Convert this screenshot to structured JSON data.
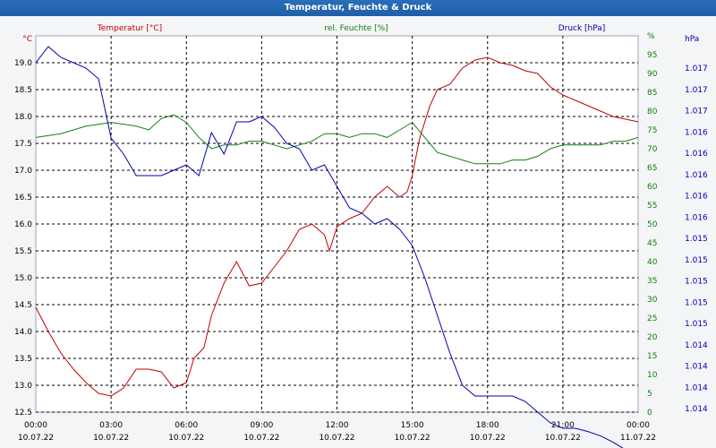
{
  "window": {
    "title": "Temperatur, Feuchte & Druck"
  },
  "chart_data": {
    "type": "line",
    "title": "Temperatur, Feuchte & Druck",
    "grid": true,
    "x_ticks": [
      {
        "time": "00:00",
        "date": "10.07.22"
      },
      {
        "time": "03:00",
        "date": "10.07.22"
      },
      {
        "time": "06:00",
        "date": "10.07.22"
      },
      {
        "time": "09:00",
        "date": "10.07.22"
      },
      {
        "time": "12:00",
        "date": "10.07.22"
      },
      {
        "time": "15:00",
        "date": "10.07.22"
      },
      {
        "time": "18:00",
        "date": "10.07.22"
      },
      {
        "time": "21:00",
        "date": "10.07.22"
      },
      {
        "time": "00:00",
        "date": "11.07.22"
      }
    ],
    "x_hours": [
      0,
      24
    ],
    "axes": {
      "temperature": {
        "label": "Temperatur [°C]",
        "unit": "°C",
        "range": [
          12.5,
          19.5
        ],
        "ticks": [
          "12.5",
          "13.0",
          "13.5",
          "14.0",
          "14.5",
          "15.0",
          "15.5",
          "16.0",
          "16.5",
          "17.0",
          "17.5",
          "18.0",
          "18.5",
          "19.0"
        ],
        "color": "#c00000"
      },
      "humidity": {
        "label": "rel. Feuchte [%]",
        "unit": "%",
        "range": [
          0,
          100
        ],
        "ticks": [
          "0",
          "5",
          "10",
          "15",
          "20",
          "25",
          "30",
          "35",
          "40",
          "45",
          "50",
          "55",
          "60",
          "65",
          "70",
          "75",
          "80",
          "85",
          "90",
          "95",
          "%"
        ],
        "color": "#108010"
      },
      "pressure": {
        "label": "Druck [hPa]",
        "unit": "hPa",
        "range": [
          1013.8,
          1017.3
        ],
        "ticks": [
          "1.014",
          "1.014",
          "1.014",
          "1.014",
          "1.015",
          "1.015",
          "1.015",
          "1.015",
          "1.015",
          "1.016",
          "1.016",
          "1.016",
          "1.016",
          "1.016",
          "1.017",
          "1.017",
          "1.017"
        ],
        "color": "#0000b0"
      }
    },
    "series": [
      {
        "name": "Temperatur [°C]",
        "axis": "temperature",
        "color": "#c00000",
        "x": [
          0,
          0.5,
          1,
          1.5,
          2,
          2.5,
          3,
          3.5,
          4,
          4.5,
          5,
          5.5,
          6,
          6.3,
          6.7,
          7,
          7.5,
          8,
          8.5,
          9,
          9.5,
          10,
          10.5,
          11,
          11.5,
          11.7,
          12,
          12.5,
          13,
          13.5,
          14,
          14.5,
          14.8,
          15,
          15.3,
          15.7,
          16,
          16.5,
          17,
          17.5,
          18,
          18.5,
          19,
          19.5,
          20,
          20.5,
          21,
          21.5,
          22,
          22.5,
          23,
          23.5,
          24
        ],
        "y": [
          14.45,
          14.0,
          13.6,
          13.3,
          13.05,
          12.85,
          12.8,
          12.95,
          13.3,
          13.3,
          13.25,
          12.95,
          13.05,
          13.5,
          13.7,
          14.3,
          14.9,
          15.3,
          14.85,
          14.9,
          15.2,
          15.5,
          15.9,
          16.0,
          15.8,
          15.5,
          15.95,
          16.1,
          16.2,
          16.5,
          16.7,
          16.5,
          16.6,
          16.9,
          17.6,
          18.2,
          18.5,
          18.6,
          18.9,
          19.05,
          19.1,
          19.0,
          18.95,
          18.85,
          18.8,
          18.55,
          18.4,
          18.3,
          18.2,
          18.1,
          18.0,
          17.95,
          17.9
        ]
      },
      {
        "name": "rel. Feuchte [%]",
        "axis": "humidity",
        "color": "#108010",
        "x": [
          0,
          1,
          2,
          3,
          4,
          4.5,
          5,
          5.5,
          6,
          6.5,
          7,
          7.5,
          8,
          8.5,
          9,
          9.5,
          10,
          10.5,
          11,
          11.5,
          12,
          12.5,
          13,
          13.5,
          14,
          14.5,
          15,
          15.5,
          16,
          16.5,
          17,
          17.5,
          18,
          18.5,
          19,
          19.5,
          20,
          20.5,
          21,
          21.5,
          22,
          22.5,
          23,
          23.5,
          24
        ],
        "y": [
          73,
          74,
          76,
          77,
          76,
          75,
          78,
          79,
          77,
          73,
          70,
          71,
          71,
          72,
          72,
          71,
          70,
          71,
          72,
          74,
          74,
          73,
          74,
          74,
          73,
          75,
          77,
          73,
          69,
          68,
          67,
          66,
          66,
          66,
          67,
          67,
          68,
          70,
          71,
          71,
          71,
          71,
          72,
          72,
          73
        ]
      },
      {
        "name": "Druck [hPa]",
        "axis": "pressure",
        "color": "#0000b0",
        "x": [
          0,
          0.5,
          1,
          1.5,
          2,
          2.5,
          3,
          3.5,
          4,
          4.5,
          5,
          5.5,
          6,
          6.5,
          7,
          7.5,
          8,
          8.5,
          9,
          9.5,
          10,
          10.5,
          11,
          11.5,
          12,
          12.5,
          13,
          13.5,
          14,
          14.5,
          15,
          15.5,
          16,
          16.5,
          17,
          17.5,
          18,
          18.5,
          19,
          19.5,
          20,
          20.5,
          21,
          21.5,
          22,
          22.5,
          23,
          23.5,
          24
        ],
        "y": [
          1017.05,
          1017.2,
          1017.1,
          1017.05,
          1017.0,
          1016.9,
          1016.35,
          1016.2,
          1016.0,
          1016.0,
          1016.0,
          1016.05,
          1016.1,
          1016.0,
          1016.4,
          1016.2,
          1016.5,
          1016.5,
          1016.55,
          1016.45,
          1016.3,
          1016.25,
          1016.05,
          1016.1,
          1015.9,
          1015.7,
          1015.65,
          1015.55,
          1015.6,
          1015.5,
          1015.35,
          1015.05,
          1014.7,
          1014.35,
          1014.05,
          1013.95,
          1013.95,
          1013.95,
          1013.95,
          1013.9,
          1013.8,
          1013.7,
          1013.65,
          1013.65,
          1013.62,
          1013.58,
          1013.52,
          1013.45,
          1013.42
        ]
      }
    ]
  }
}
